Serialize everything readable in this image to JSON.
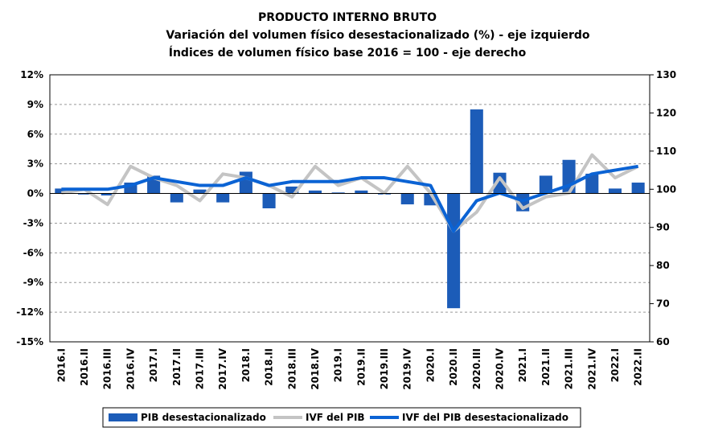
{
  "chart_data": {
    "type": "bar",
    "title": "PRODUCTO INTERNO BRUTO",
    "subtitle": "Variación del volumen físico desestacionalizado (%) - eje izquierdo",
    "subtitle2": "Índices de volumen físico base 2016 = 100 - eje derecho",
    "categories": [
      "2016.I",
      "2016.II",
      "2016.III",
      "2016.IV",
      "2017.I",
      "2017.II",
      "2017.III",
      "2017.IV",
      "2018.I",
      "2018.II",
      "2018.III",
      "2018.IV",
      "2019.I",
      "2019.II",
      "2019.III",
      "2019.IV",
      "2020.I",
      "2020.II",
      "2020.III",
      "2020.IV",
      "2021.I",
      "2021.II",
      "2021.III",
      "2021.IV",
      "2022.I",
      "2022.II"
    ],
    "series": [
      {
        "name": "PIB desestacionalizado",
        "type": "bar",
        "color": "#1c5cb8",
        "values": [
          0.5,
          -0.1,
          -0.2,
          1.1,
          1.8,
          -0.9,
          0.4,
          -0.9,
          2.2,
          -1.5,
          0.7,
          0.3,
          0.1,
          0.3,
          -0.1,
          -1.1,
          -1.2,
          -11.6,
          8.5,
          2.1,
          -1.8,
          1.8,
          3.4,
          2.0,
          0.5,
          1.1
        ]
      },
      {
        "name": "IVF del PIB",
        "type": "line",
        "axis": "y2",
        "color": "#c4c4c4",
        "values": [
          99,
          100,
          96,
          106,
          103,
          101,
          97,
          104,
          103,
          101,
          98,
          106,
          101,
          103,
          99,
          106,
          99,
          89,
          94,
          103,
          95,
          98,
          99,
          109,
          103,
          106
        ]
      },
      {
        "name": "IVF del PIB desestacionalizado",
        "type": "line",
        "axis": "y2",
        "color": "#0b63d4",
        "values": [
          100,
          100,
          100,
          101,
          103,
          102,
          101,
          101,
          103,
          101,
          102,
          102,
          102,
          103,
          103,
          102,
          101,
          89,
          97,
          99,
          97,
          99,
          101,
          104,
          105,
          106
        ]
      }
    ],
    "ylim": [
      -15,
      12
    ],
    "yticks": [
      {
        "value": -15,
        "label": "-15%"
      },
      {
        "value": -12,
        "label": "-12%"
      },
      {
        "value": -9,
        "label": "-9%"
      },
      {
        "value": -6,
        "label": "-6%"
      },
      {
        "value": -3,
        "label": "-3%"
      },
      {
        "value": 0,
        "label": "0%"
      },
      {
        "value": 3,
        "label": "3%"
      },
      {
        "value": 6,
        "label": "6%"
      },
      {
        "value": 9,
        "label": "9%"
      },
      {
        "value": 12,
        "label": "12%"
      }
    ],
    "y2lim": [
      60,
      130
    ],
    "y2ticks": [
      60,
      70,
      80,
      90,
      100,
      110,
      120,
      130
    ],
    "grid": true,
    "legend": "bottom"
  }
}
